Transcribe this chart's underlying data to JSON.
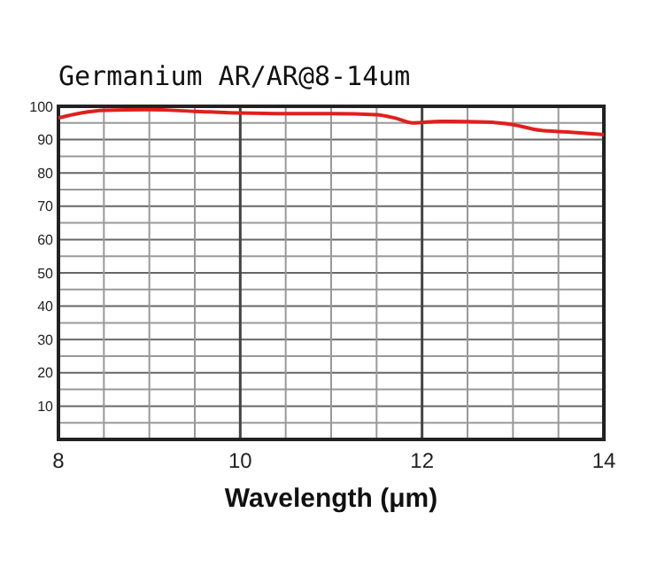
{
  "chart_data": {
    "type": "line",
    "title": "Germanium AR/AR@8-14um",
    "xlabel": "Wavelength (μm)",
    "x": [
      8,
      8.25,
      8.5,
      9,
      9.5,
      10,
      10.5,
      11,
      11.5,
      11.7,
      11.9,
      12.2,
      12.7,
      13,
      13.3,
      13.6,
      14
    ],
    "series": [
      {
        "color": "#e0201c",
        "values": [
          96.5,
          98,
          98.8,
          99,
          98.5,
          98,
          97.8,
          97.8,
          97.5,
          96.5,
          95,
          95.5,
          95.3,
          94.5,
          92.8,
          92.3,
          91.5
        ]
      }
    ],
    "xlim": [
      8,
      14
    ],
    "xticks": [
      8,
      {
        "value": 8.5,
        "label": null
      },
      {
        "value": 9,
        "label": null
      },
      {
        "value": 9.5,
        "label": null
      },
      10,
      {
        "value": 10.5,
        "label": null
      },
      {
        "value": 11,
        "label": null
      },
      {
        "value": 11.5,
        "label": null
      },
      12,
      {
        "value": 12.5,
        "label": null
      },
      {
        "value": 13,
        "label": null
      },
      {
        "value": 13.5,
        "label": null
      },
      14
    ],
    "ylim": [
      0,
      100
    ],
    "yticks": [
      {
        "value": 5,
        "label": null
      },
      10,
      {
        "value": 15,
        "label": null
      },
      20,
      {
        "value": 25,
        "label": null
      },
      30,
      {
        "value": 35,
        "label": null
      },
      40,
      {
        "value": 45,
        "label": null
      },
      50,
      {
        "value": 55,
        "label": null
      },
      60,
      {
        "value": 65,
        "label": null
      },
      70,
      {
        "value": 75,
        "label": null
      },
      80,
      {
        "value": 85,
        "label": null
      },
      90,
      {
        "value": 95,
        "label": null
      },
      100
    ],
    "grid": true,
    "marker": "none",
    "line_style": "solid"
  }
}
